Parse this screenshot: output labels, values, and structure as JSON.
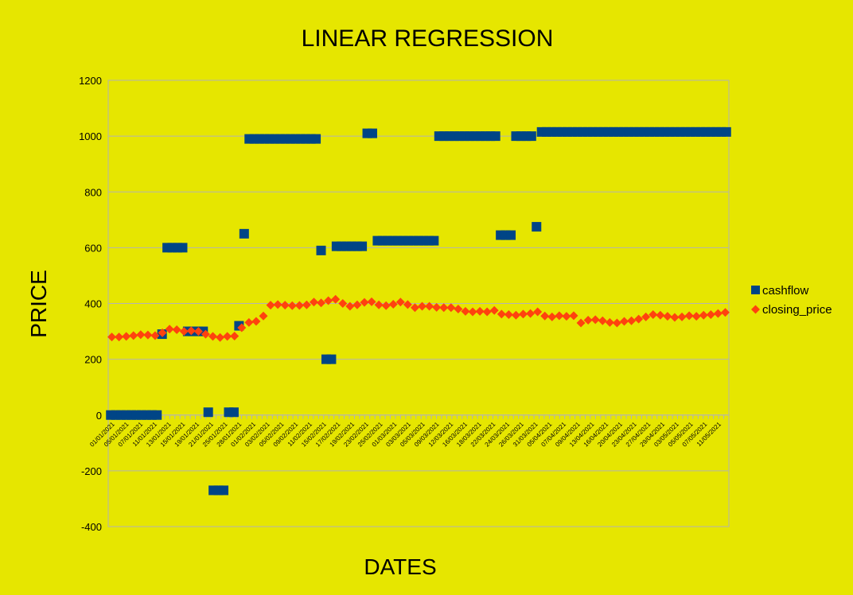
{
  "chart_data": {
    "type": "scatter",
    "title": "LINEAR REGRESSION",
    "xlabel": "DATES",
    "ylabel": "PRICE",
    "ylim": [
      -400,
      1200
    ],
    "yticks": [
      -400,
      -200,
      0,
      200,
      400,
      600,
      800,
      1000,
      1200
    ],
    "grid": true,
    "legend_position": "right",
    "background_color": "#e6e600",
    "x_tick_labels": [
      "01/01/2021",
      "05/01/2021",
      "07/01/2021",
      "11/01/2021",
      "13/01/2021",
      "15/01/2021",
      "19/01/2021",
      "21/01/2021",
      "25/01/2021",
      "28/01/2021",
      "01/02/2021",
      "03/02/2021",
      "05/02/2021",
      "09/02/2021",
      "11/02/2021",
      "15/02/2021",
      "17/02/2021",
      "19/02/2021",
      "23/02/2021",
      "25/02/2021",
      "01/03/2021",
      "03/03/2021",
      "05/03/2021",
      "09/03/2021",
      "12/03/2021",
      "16/03/2021",
      "18/03/2021",
      "22/03/2021",
      "24/03/2021",
      "26/03/2021",
      "31/03/2021",
      "05/04/2021",
      "07/04/2021",
      "09/04/2021",
      "13/04/2021",
      "16/04/2021",
      "20/04/2021",
      "23/04/2021",
      "27/04/2021",
      "29/04/2021",
      "03/05/2021",
      "05/05/2021",
      "07/05/2021",
      "11/05/2021"
    ],
    "series": [
      {
        "name": "cashflow",
        "color": "#004586",
        "marker": "square",
        "values": [
          0,
          0,
          0,
          0,
          0,
          0,
          0,
          0,
          0,
          0,
          290,
          600,
          600,
          600,
          600,
          300,
          300,
          300,
          300,
          10,
          -270,
          -270,
          -270,
          10,
          10,
          320,
          650,
          990,
          990,
          990,
          990,
          990,
          990,
          990,
          990,
          990,
          990,
          990,
          990,
          990,
          990,
          590,
          200,
          200,
          605,
          605,
          605,
          605,
          605,
          605,
          1010,
          1010,
          625,
          625,
          625,
          625,
          625,
          625,
          625,
          625,
          625,
          625,
          625,
          625,
          1000,
          1000,
          1000,
          1000,
          1000,
          1000,
          1000,
          1000,
          1000,
          1000,
          1000,
          1000,
          645,
          645,
          645,
          1000,
          1000,
          1000,
          1000,
          675,
          1015,
          1015,
          1015,
          1015,
          1015,
          1015,
          1015,
          1015,
          1015,
          1015,
          1015,
          1015,
          1015,
          1015,
          1015,
          1015,
          1015,
          1015,
          1015,
          1015,
          1015,
          1015,
          1015,
          1015,
          1015,
          1015,
          1015,
          1015,
          1015,
          1015,
          1015,
          1015,
          1015,
          1015,
          1015,
          1015,
          1015
        ]
      },
      {
        "name": "closing_price",
        "color": "#ff420e",
        "marker": "diamond",
        "values": [
          280,
          280,
          282,
          285,
          288,
          287,
          285,
          295,
          308,
          306,
          300,
          302,
          300,
          290,
          282,
          278,
          282,
          283,
          313,
          332,
          336,
          355,
          394,
          396,
          394,
          392,
          393,
          395,
          405,
          402,
          410,
          415,
          400,
          390,
          395,
          404,
          406,
          395,
          392,
          397,
          405,
          396,
          385,
          390,
          390,
          386,
          385,
          385,
          380,
          372,
          370,
          372,
          370,
          375,
          362,
          360,
          358,
          362,
          364,
          370,
          355,
          352,
          356,
          354,
          356,
          330,
          340,
          342,
          338,
          332,
          330,
          336,
          338,
          344,
          352,
          360,
          358,
          354,
          350,
          352,
          356,
          354,
          358,
          360,
          364,
          368
        ]
      }
    ]
  }
}
